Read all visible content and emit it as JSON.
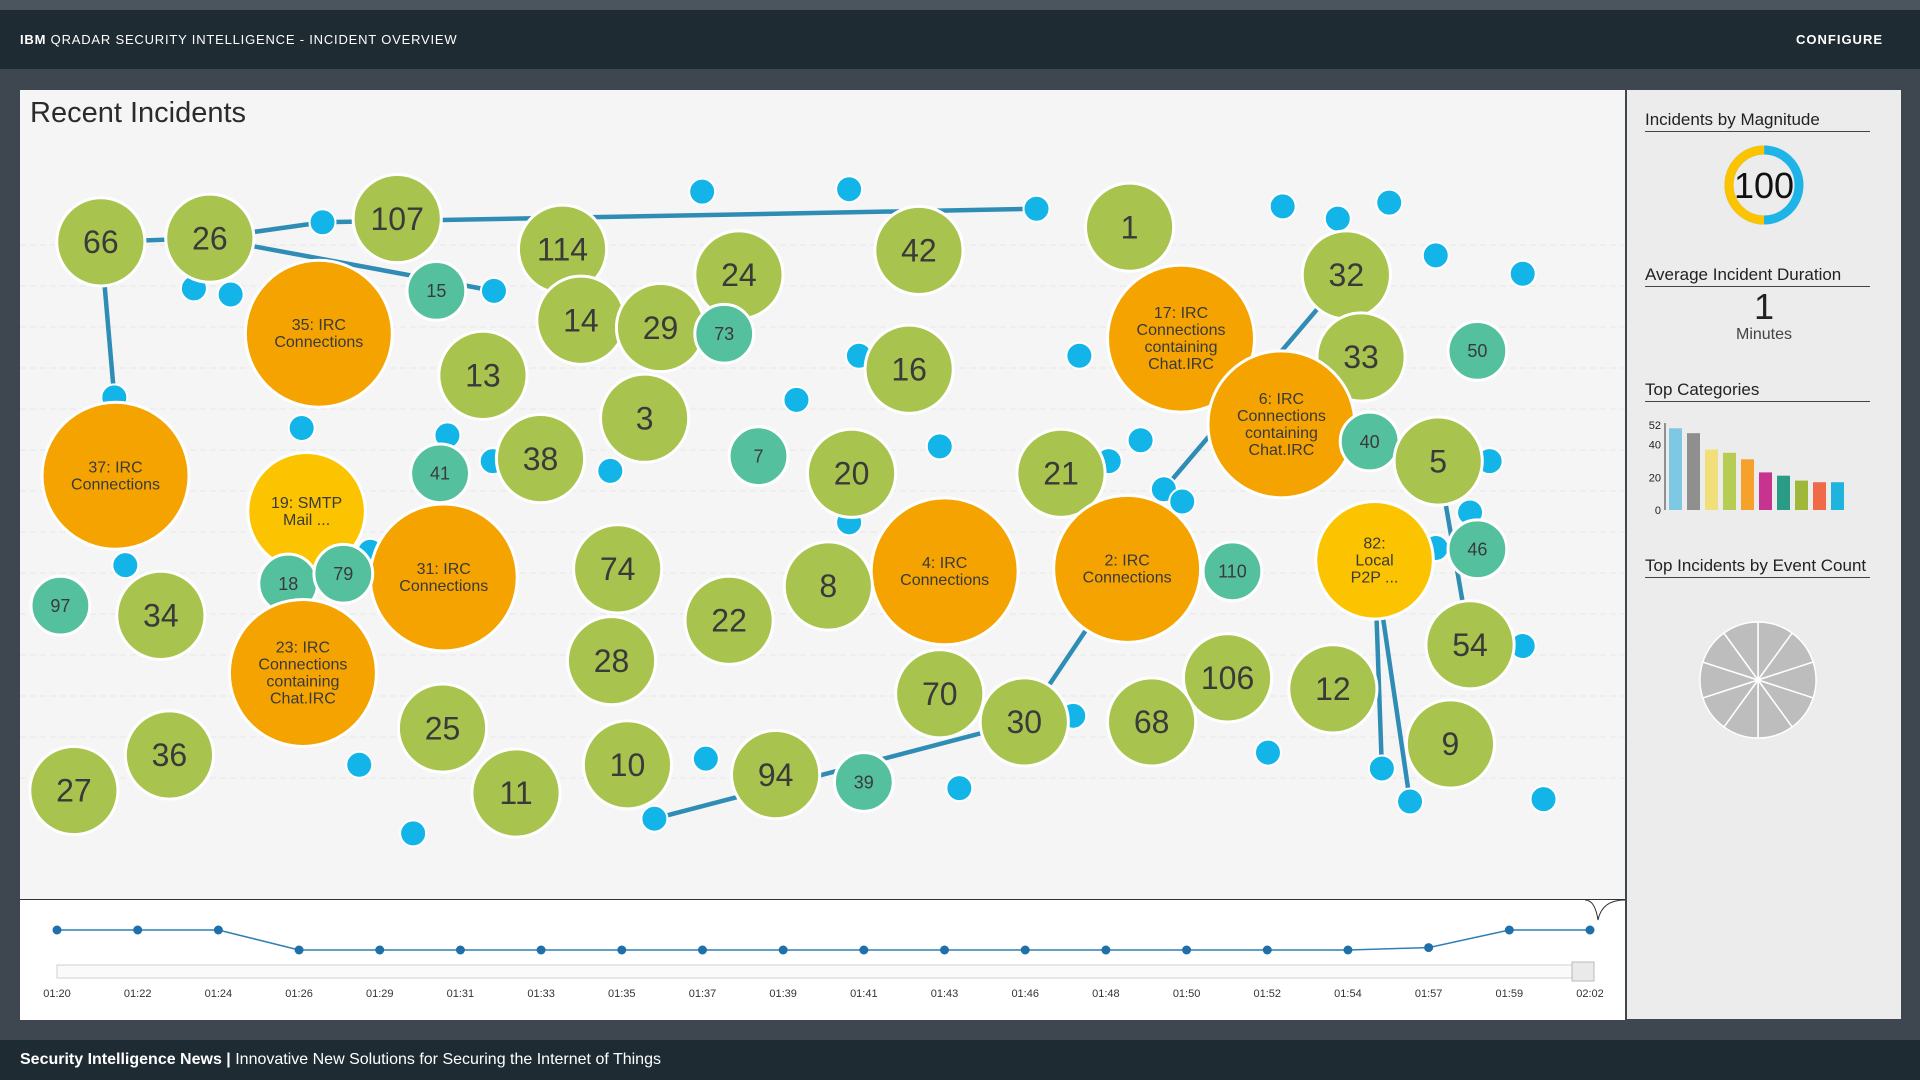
{
  "header": {
    "title_brand": "IBM",
    "title_rest": "QRADAR SECURITY INTELLIGENCE - INCIDENT OVERVIEW",
    "configure_label": "CONFIGURE"
  },
  "main": {
    "title": "Recent Incidents"
  },
  "colors": {
    "green": "#a8c34e",
    "orange": "#f5a300",
    "yellow": "#fcc400",
    "teal": "#55c09e",
    "dot": "#13b5e8",
    "link": "#2f8db5"
  },
  "incidents": [
    {
      "label": "66",
      "kind": "green"
    },
    {
      "label": "26",
      "kind": "green"
    },
    {
      "label": "107",
      "kind": "green"
    },
    {
      "label": "114",
      "kind": "green"
    },
    {
      "label": "24",
      "kind": "green"
    },
    {
      "label": "42",
      "kind": "green"
    },
    {
      "label": "1",
      "kind": "green"
    },
    {
      "label": "32",
      "kind": "green"
    },
    {
      "label": "15",
      "kind": "teal"
    },
    {
      "label": "35: IRC Connections",
      "kind": "orange"
    },
    {
      "label": "14",
      "kind": "green"
    },
    {
      "label": "29",
      "kind": "green"
    },
    {
      "label": "73",
      "kind": "teal"
    },
    {
      "label": "16",
      "kind": "green"
    },
    {
      "label": "17: IRC Connections containing Chat.IRC",
      "kind": "orange"
    },
    {
      "label": "33",
      "kind": "green"
    },
    {
      "label": "50",
      "kind": "teal"
    },
    {
      "label": "13",
      "kind": "green"
    },
    {
      "label": "3",
      "kind": "green"
    },
    {
      "label": "37: IRC Connections",
      "kind": "orange"
    },
    {
      "label": "6: IRC Connections containing Chat.IRC",
      "kind": "orange"
    },
    {
      "label": "41",
      "kind": "teal"
    },
    {
      "label": "38",
      "kind": "green"
    },
    {
      "label": "7",
      "kind": "teal"
    },
    {
      "label": "20",
      "kind": "green"
    },
    {
      "label": "21",
      "kind": "green"
    },
    {
      "label": "40",
      "kind": "teal"
    },
    {
      "label": "5",
      "kind": "green"
    },
    {
      "label": "19: SMTP Mail ...",
      "kind": "yellow"
    },
    {
      "label": "31: IRC Connections",
      "kind": "orange"
    },
    {
      "label": "74",
      "kind": "green"
    },
    {
      "label": "18",
      "kind": "teal"
    },
    {
      "label": "79",
      "kind": "teal"
    },
    {
      "label": "4: IRC Connections",
      "kind": "orange"
    },
    {
      "label": "8",
      "kind": "green"
    },
    {
      "label": "2: IRC Connections",
      "kind": "orange"
    },
    {
      "label": "110",
      "kind": "teal"
    },
    {
      "label": "82: Local P2P ...",
      "kind": "yellow"
    },
    {
      "label": "46",
      "kind": "teal"
    },
    {
      "label": "97",
      "kind": "teal"
    },
    {
      "label": "34",
      "kind": "green"
    },
    {
      "label": "22",
      "kind": "green"
    },
    {
      "label": "23: IRC Connections containing Chat.IRC",
      "kind": "orange"
    },
    {
      "label": "28",
      "kind": "green"
    },
    {
      "label": "54",
      "kind": "green"
    },
    {
      "label": "106",
      "kind": "green"
    },
    {
      "label": "70",
      "kind": "green"
    },
    {
      "label": "12",
      "kind": "green"
    },
    {
      "label": "30",
      "kind": "green"
    },
    {
      "label": "68",
      "kind": "green"
    },
    {
      "label": "36",
      "kind": "green"
    },
    {
      "label": "25",
      "kind": "green"
    },
    {
      "label": "9",
      "kind": "green"
    },
    {
      "label": "27",
      "kind": "green"
    },
    {
      "label": "11",
      "kind": "green"
    },
    {
      "label": "10",
      "kind": "green"
    },
    {
      "label": "94",
      "kind": "green"
    },
    {
      "label": "39",
      "kind": "teal"
    }
  ],
  "timeline": {
    "labels": [
      "01:20",
      "01:22",
      "01:24",
      "01:26",
      "01:29",
      "01:31",
      "01:33",
      "01:35",
      "01:37",
      "01:39",
      "01:41",
      "01:43",
      "01:46",
      "01:48",
      "01:50",
      "01:52",
      "01:54",
      "01:57",
      "01:59",
      "02:02"
    ],
    "levels": [
      1,
      1,
      1,
      0,
      0,
      0,
      0,
      0,
      0,
      0,
      0,
      0,
      0,
      0,
      0,
      0,
      0,
      0.12,
      1,
      1
    ]
  },
  "sidebar": {
    "magnitude_title": "Incidents by Magnitude",
    "magnitude_value": "100",
    "magnitude_fraction": 0.5,
    "duration_title": "Average Incident Duration",
    "duration_value": "1",
    "duration_unit": "Minutes",
    "categories_title": "Top Categories",
    "categories": {
      "ticks": [
        "52",
        "40",
        "20",
        "0"
      ],
      "tick_values": [
        52,
        40,
        20,
        0
      ],
      "ymax": 52,
      "values": [
        50,
        47,
        37,
        35,
        31,
        23,
        21,
        18,
        17,
        17
      ],
      "colors": [
        "#7ec8e3",
        "#8f8f8f",
        "#f1df7a",
        "#b6cc52",
        "#f6a12c",
        "#c7348f",
        "#2a9c86",
        "#9fb83a",
        "#f06a4a",
        "#1fb4dd"
      ]
    },
    "event_count_title": "Top Incidents by Event Count",
    "event_count_slices": 10
  },
  "footer": {
    "bold": "Security Intelligence News |",
    "text": "Innovative New Solutions for Securing the Internet of Things"
  }
}
